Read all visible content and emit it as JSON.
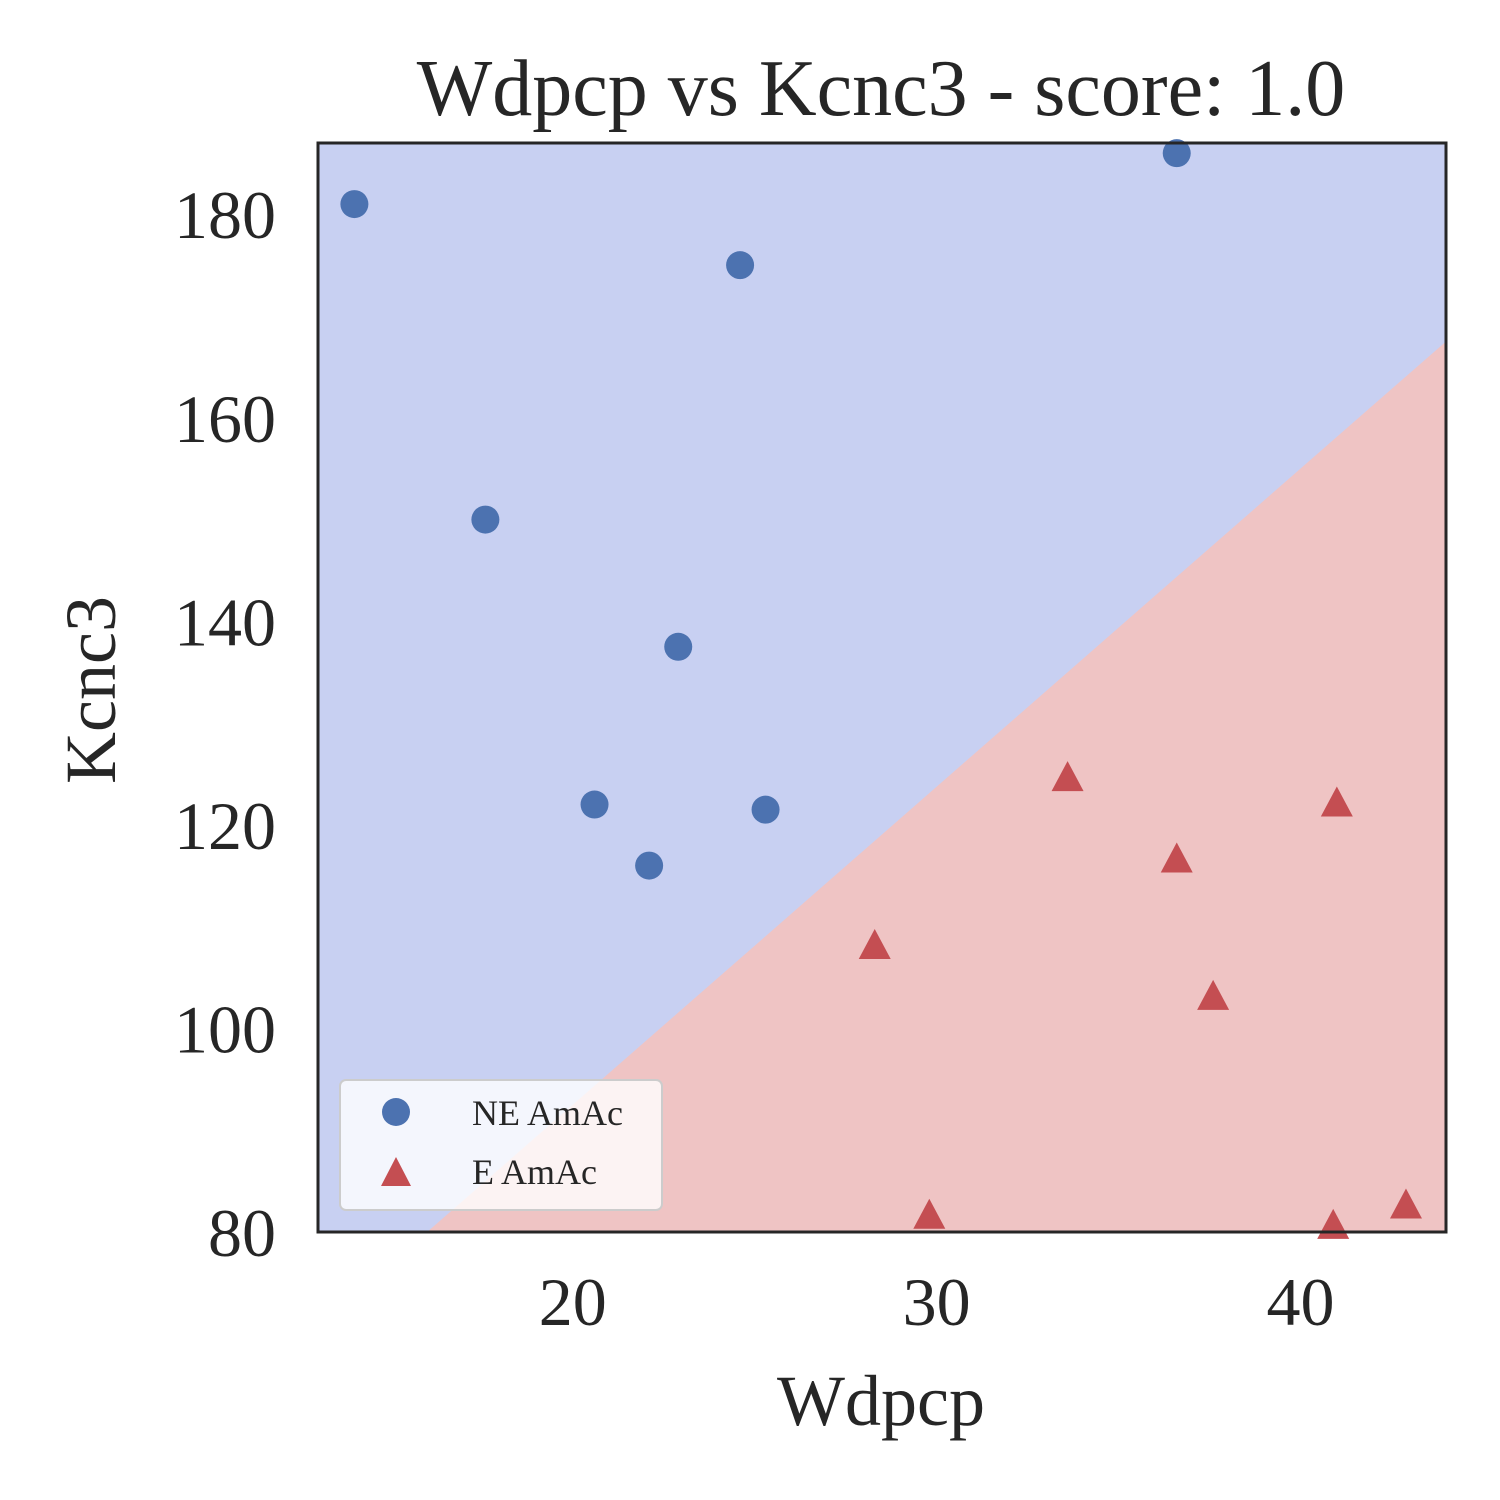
{
  "chart_data": {
    "type": "scatter",
    "title": "Wdpcp vs Kcnc3 - score: 1.0",
    "xlabel": "Wdpcp",
    "ylabel": "Kcnc3",
    "xlim": [
      13.0,
      44.0
    ],
    "ylim": [
      80,
      187
    ],
    "xticks": [
      20,
      30,
      40
    ],
    "yticks": [
      80,
      100,
      120,
      140,
      160,
      180
    ],
    "grid": false,
    "legend_position": "lower-left",
    "decision_boundary": {
      "from": [
        16.0,
        80.0
      ],
      "to": [
        44.0,
        167.5
      ]
    },
    "region_colors": {
      "ne_region": "#c8d0f2",
      "e_region": "#efc4c4"
    },
    "series": [
      {
        "name": "NE AmAc",
        "marker": "circle",
        "color": "#4c72b0",
        "points": [
          [
            14.0,
            181.0
          ],
          [
            17.6,
            150.0
          ],
          [
            20.6,
            122.0
          ],
          [
            22.1,
            116.0
          ],
          [
            22.9,
            137.5
          ],
          [
            24.6,
            175.0
          ],
          [
            25.3,
            121.5
          ],
          [
            36.6,
            186.0
          ]
        ]
      },
      {
        "name": "E AmAc",
        "marker": "triangle",
        "color": "#c44e52",
        "points": [
          [
            28.3,
            108.0
          ],
          [
            29.8,
            81.5
          ],
          [
            33.6,
            124.5
          ],
          [
            36.6,
            116.5
          ],
          [
            37.6,
            103.0
          ],
          [
            40.9,
            80.5
          ],
          [
            41.0,
            122.0
          ],
          [
            42.9,
            82.5
          ]
        ]
      }
    ]
  }
}
